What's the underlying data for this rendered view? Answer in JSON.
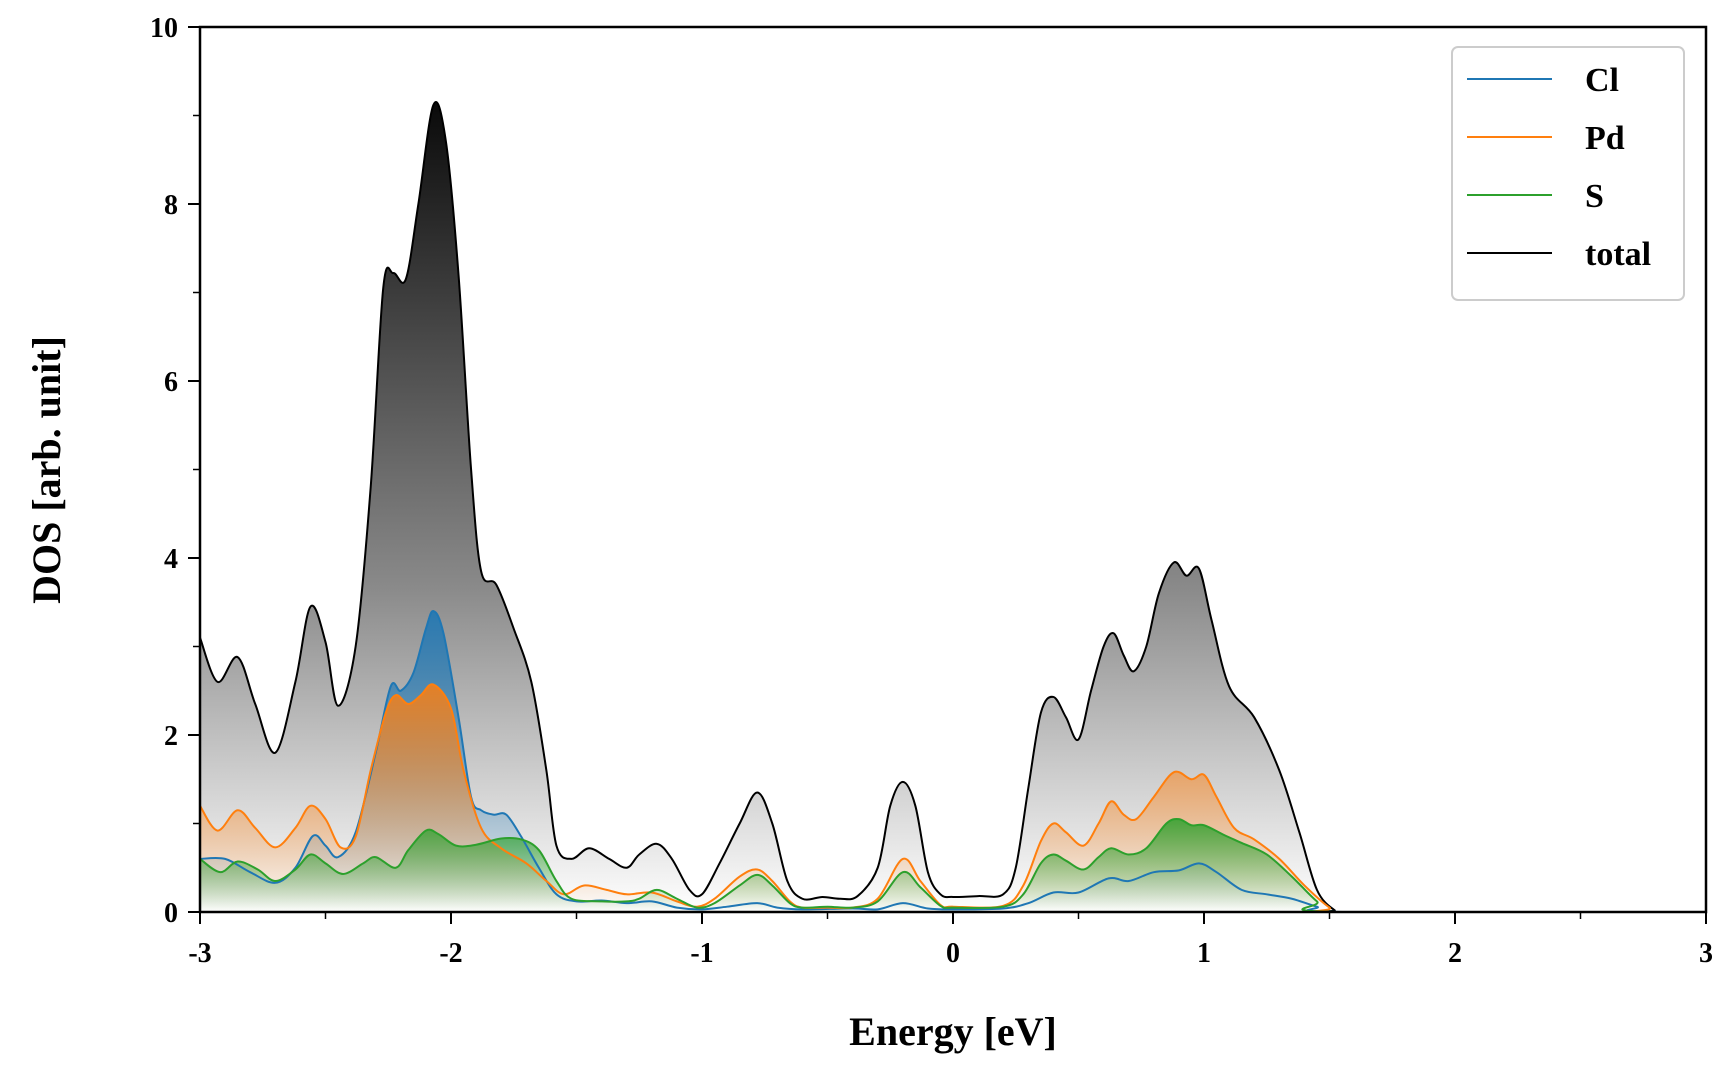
{
  "chart_data": {
    "type": "area",
    "xlabel": "Energy [eV]",
    "ylabel": "DOS [arb. unit]",
    "xlim": [
      -3,
      3
    ],
    "ylim": [
      0,
      10
    ],
    "x_ticks": [
      -3,
      -2,
      -1,
      0,
      1,
      2,
      3
    ],
    "x_tick_labels": [
      "-3",
      "-2",
      "-1",
      "0",
      "1",
      "2",
      "3"
    ],
    "y_ticks": [
      0,
      2,
      4,
      6,
      8,
      10
    ],
    "y_tick_labels": [
      "0",
      "2",
      "4",
      "6",
      "8",
      "10"
    ],
    "grid": false,
    "legend_position": "top-right",
    "series": [
      {
        "name": "Cl",
        "color": "#1f77b4",
        "points": [
          [
            -3,
            0.6
          ],
          [
            -2.9,
            0.6
          ],
          [
            -2.8,
            0.45
          ],
          [
            -2.7,
            0.33
          ],
          [
            -2.62,
            0.5
          ],
          [
            -2.55,
            0.86
          ],
          [
            -2.5,
            0.75
          ],
          [
            -2.45,
            0.62
          ],
          [
            -2.38,
            0.9
          ],
          [
            -2.3,
            1.8
          ],
          [
            -2.24,
            2.55
          ],
          [
            -2.2,
            2.5
          ],
          [
            -2.15,
            2.7
          ],
          [
            -2.1,
            3.2
          ],
          [
            -2.07,
            3.4
          ],
          [
            -2.03,
            3.15
          ],
          [
            -1.97,
            2.2
          ],
          [
            -1.92,
            1.3
          ],
          [
            -1.88,
            1.15
          ],
          [
            -1.83,
            1.1
          ],
          [
            -1.78,
            1.1
          ],
          [
            -1.72,
            0.85
          ],
          [
            -1.65,
            0.5
          ],
          [
            -1.58,
            0.2
          ],
          [
            -1.5,
            0.12
          ],
          [
            -1.4,
            0.13
          ],
          [
            -1.3,
            0.1
          ],
          [
            -1.2,
            0.12
          ],
          [
            -1.1,
            0.05
          ],
          [
            -1.0,
            0.03
          ],
          [
            -0.9,
            0.06
          ],
          [
            -0.78,
            0.1
          ],
          [
            -0.7,
            0.05
          ],
          [
            -0.6,
            0.03
          ],
          [
            -0.4,
            0.04
          ],
          [
            -0.3,
            0.03
          ],
          [
            -0.2,
            0.1
          ],
          [
            -0.1,
            0.04
          ],
          [
            0,
            0.03
          ],
          [
            0.2,
            0.04
          ],
          [
            0.3,
            0.1
          ],
          [
            0.4,
            0.22
          ],
          [
            0.5,
            0.22
          ],
          [
            0.62,
            0.38
          ],
          [
            0.7,
            0.35
          ],
          [
            0.8,
            0.45
          ],
          [
            0.9,
            0.47
          ],
          [
            0.98,
            0.55
          ],
          [
            1.05,
            0.45
          ],
          [
            1.15,
            0.25
          ],
          [
            1.25,
            0.2
          ],
          [
            1.35,
            0.15
          ],
          [
            1.45,
            0.06
          ],
          [
            1.55,
            0
          ],
          [
            3,
            0
          ]
        ]
      },
      {
        "name": "Pd",
        "color": "#ff7f0e",
        "points": [
          [
            -3,
            1.2
          ],
          [
            -2.93,
            0.92
          ],
          [
            -2.85,
            1.15
          ],
          [
            -2.78,
            0.95
          ],
          [
            -2.7,
            0.73
          ],
          [
            -2.62,
            0.95
          ],
          [
            -2.56,
            1.2
          ],
          [
            -2.5,
            1.05
          ],
          [
            -2.44,
            0.73
          ],
          [
            -2.38,
            0.85
          ],
          [
            -2.32,
            1.6
          ],
          [
            -2.26,
            2.25
          ],
          [
            -2.22,
            2.45
          ],
          [
            -2.17,
            2.35
          ],
          [
            -2.12,
            2.45
          ],
          [
            -2.07,
            2.57
          ],
          [
            -2.0,
            2.3
          ],
          [
            -1.95,
            1.6
          ],
          [
            -1.88,
            0.95
          ],
          [
            -1.8,
            0.72
          ],
          [
            -1.7,
            0.55
          ],
          [
            -1.62,
            0.35
          ],
          [
            -1.55,
            0.2
          ],
          [
            -1.47,
            0.3
          ],
          [
            -1.38,
            0.25
          ],
          [
            -1.3,
            0.2
          ],
          [
            -1.2,
            0.22
          ],
          [
            -1.1,
            0.12
          ],
          [
            -1.02,
            0.06
          ],
          [
            -0.95,
            0.15
          ],
          [
            -0.85,
            0.4
          ],
          [
            -0.78,
            0.48
          ],
          [
            -0.72,
            0.35
          ],
          [
            -0.65,
            0.12
          ],
          [
            -0.6,
            0.05
          ],
          [
            -0.5,
            0.05
          ],
          [
            -0.4,
            0.05
          ],
          [
            -0.3,
            0.15
          ],
          [
            -0.2,
            0.6
          ],
          [
            -0.13,
            0.35
          ],
          [
            -0.05,
            0.08
          ],
          [
            0,
            0.06
          ],
          [
            0.2,
            0.07
          ],
          [
            0.28,
            0.3
          ],
          [
            0.35,
            0.8
          ],
          [
            0.4,
            1.0
          ],
          [
            0.45,
            0.9
          ],
          [
            0.52,
            0.75
          ],
          [
            0.58,
            1.0
          ],
          [
            0.63,
            1.25
          ],
          [
            0.68,
            1.1
          ],
          [
            0.73,
            1.05
          ],
          [
            0.8,
            1.3
          ],
          [
            0.88,
            1.58
          ],
          [
            0.95,
            1.5
          ],
          [
            1.0,
            1.55
          ],
          [
            1.05,
            1.3
          ],
          [
            1.12,
            0.95
          ],
          [
            1.2,
            0.82
          ],
          [
            1.3,
            0.6
          ],
          [
            1.4,
            0.3
          ],
          [
            1.5,
            0.05
          ],
          [
            1.55,
            0
          ],
          [
            3,
            0
          ]
        ]
      },
      {
        "name": "S",
        "color": "#2ca02c",
        "points": [
          [
            -3,
            0.6
          ],
          [
            -2.92,
            0.45
          ],
          [
            -2.85,
            0.57
          ],
          [
            -2.77,
            0.48
          ],
          [
            -2.7,
            0.35
          ],
          [
            -2.62,
            0.48
          ],
          [
            -2.56,
            0.65
          ],
          [
            -2.5,
            0.55
          ],
          [
            -2.43,
            0.43
          ],
          [
            -2.35,
            0.55
          ],
          [
            -2.3,
            0.62
          ],
          [
            -2.22,
            0.5
          ],
          [
            -2.17,
            0.7
          ],
          [
            -2.1,
            0.92
          ],
          [
            -2.05,
            0.88
          ],
          [
            -1.98,
            0.75
          ],
          [
            -1.9,
            0.76
          ],
          [
            -1.8,
            0.83
          ],
          [
            -1.72,
            0.82
          ],
          [
            -1.65,
            0.7
          ],
          [
            -1.58,
            0.35
          ],
          [
            -1.52,
            0.15
          ],
          [
            -1.4,
            0.12
          ],
          [
            -1.3,
            0.12
          ],
          [
            -1.25,
            0.15
          ],
          [
            -1.18,
            0.25
          ],
          [
            -1.1,
            0.15
          ],
          [
            -1.02,
            0.05
          ],
          [
            -0.95,
            0.1
          ],
          [
            -0.85,
            0.3
          ],
          [
            -0.78,
            0.42
          ],
          [
            -0.72,
            0.3
          ],
          [
            -0.65,
            0.1
          ],
          [
            -0.6,
            0.05
          ],
          [
            -0.5,
            0.06
          ],
          [
            -0.4,
            0.05
          ],
          [
            -0.3,
            0.12
          ],
          [
            -0.2,
            0.45
          ],
          [
            -0.13,
            0.28
          ],
          [
            -0.05,
            0.07
          ],
          [
            0,
            0.05
          ],
          [
            0.2,
            0.06
          ],
          [
            0.28,
            0.2
          ],
          [
            0.35,
            0.55
          ],
          [
            0.4,
            0.65
          ],
          [
            0.45,
            0.58
          ],
          [
            0.52,
            0.48
          ],
          [
            0.58,
            0.62
          ],
          [
            0.63,
            0.72
          ],
          [
            0.7,
            0.65
          ],
          [
            0.77,
            0.72
          ],
          [
            0.85,
            1.0
          ],
          [
            0.9,
            1.05
          ],
          [
            0.95,
            0.98
          ],
          [
            1.0,
            0.98
          ],
          [
            1.08,
            0.87
          ],
          [
            1.15,
            0.78
          ],
          [
            1.25,
            0.65
          ],
          [
            1.35,
            0.4
          ],
          [
            1.45,
            0.12
          ],
          [
            1.52,
            0
          ],
          [
            3,
            0
          ]
        ]
      },
      {
        "name": "total",
        "color": "#000000",
        "points": [
          [
            -3,
            3.1
          ],
          [
            -2.93,
            2.6
          ],
          [
            -2.85,
            2.88
          ],
          [
            -2.78,
            2.35
          ],
          [
            -2.7,
            1.8
          ],
          [
            -2.62,
            2.6
          ],
          [
            -2.56,
            3.45
          ],
          [
            -2.5,
            3.05
          ],
          [
            -2.45,
            2.33
          ],
          [
            -2.38,
            3.0
          ],
          [
            -2.32,
            4.8
          ],
          [
            -2.27,
            7.05
          ],
          [
            -2.23,
            7.22
          ],
          [
            -2.18,
            7.15
          ],
          [
            -2.13,
            8.0
          ],
          [
            -2.07,
            9.12
          ],
          [
            -2.02,
            8.7
          ],
          [
            -1.97,
            7.2
          ],
          [
            -1.92,
            5.0
          ],
          [
            -1.88,
            3.85
          ],
          [
            -1.82,
            3.7
          ],
          [
            -1.75,
            3.2
          ],
          [
            -1.68,
            2.6
          ],
          [
            -1.62,
            1.6
          ],
          [
            -1.58,
            0.75
          ],
          [
            -1.52,
            0.6
          ],
          [
            -1.45,
            0.72
          ],
          [
            -1.37,
            0.6
          ],
          [
            -1.3,
            0.5
          ],
          [
            -1.25,
            0.65
          ],
          [
            -1.18,
            0.77
          ],
          [
            -1.12,
            0.6
          ],
          [
            -1.05,
            0.25
          ],
          [
            -1.0,
            0.2
          ],
          [
            -0.93,
            0.55
          ],
          [
            -0.85,
            1.0
          ],
          [
            -0.78,
            1.35
          ],
          [
            -0.72,
            1.0
          ],
          [
            -0.66,
            0.35
          ],
          [
            -0.6,
            0.15
          ],
          [
            -0.52,
            0.17
          ],
          [
            -0.45,
            0.15
          ],
          [
            -0.38,
            0.18
          ],
          [
            -0.3,
            0.5
          ],
          [
            -0.25,
            1.2
          ],
          [
            -0.2,
            1.47
          ],
          [
            -0.15,
            1.2
          ],
          [
            -0.1,
            0.45
          ],
          [
            -0.05,
            0.2
          ],
          [
            0,
            0.17
          ],
          [
            0.1,
            0.18
          ],
          [
            0.2,
            0.2
          ],
          [
            0.25,
            0.5
          ],
          [
            0.3,
            1.4
          ],
          [
            0.35,
            2.25
          ],
          [
            0.4,
            2.43
          ],
          [
            0.45,
            2.2
          ],
          [
            0.5,
            1.95
          ],
          [
            0.55,
            2.5
          ],
          [
            0.6,
            3.0
          ],
          [
            0.64,
            3.15
          ],
          [
            0.68,
            2.9
          ],
          [
            0.72,
            2.72
          ],
          [
            0.77,
            3.0
          ],
          [
            0.82,
            3.6
          ],
          [
            0.88,
            3.95
          ],
          [
            0.93,
            3.8
          ],
          [
            0.98,
            3.88
          ],
          [
            1.03,
            3.3
          ],
          [
            1.1,
            2.55
          ],
          [
            1.2,
            2.2
          ],
          [
            1.3,
            1.6
          ],
          [
            1.38,
            0.9
          ],
          [
            1.45,
            0.25
          ],
          [
            1.52,
            0.02
          ],
          [
            1.56,
            0
          ],
          [
            3,
            0
          ]
        ]
      }
    ]
  }
}
